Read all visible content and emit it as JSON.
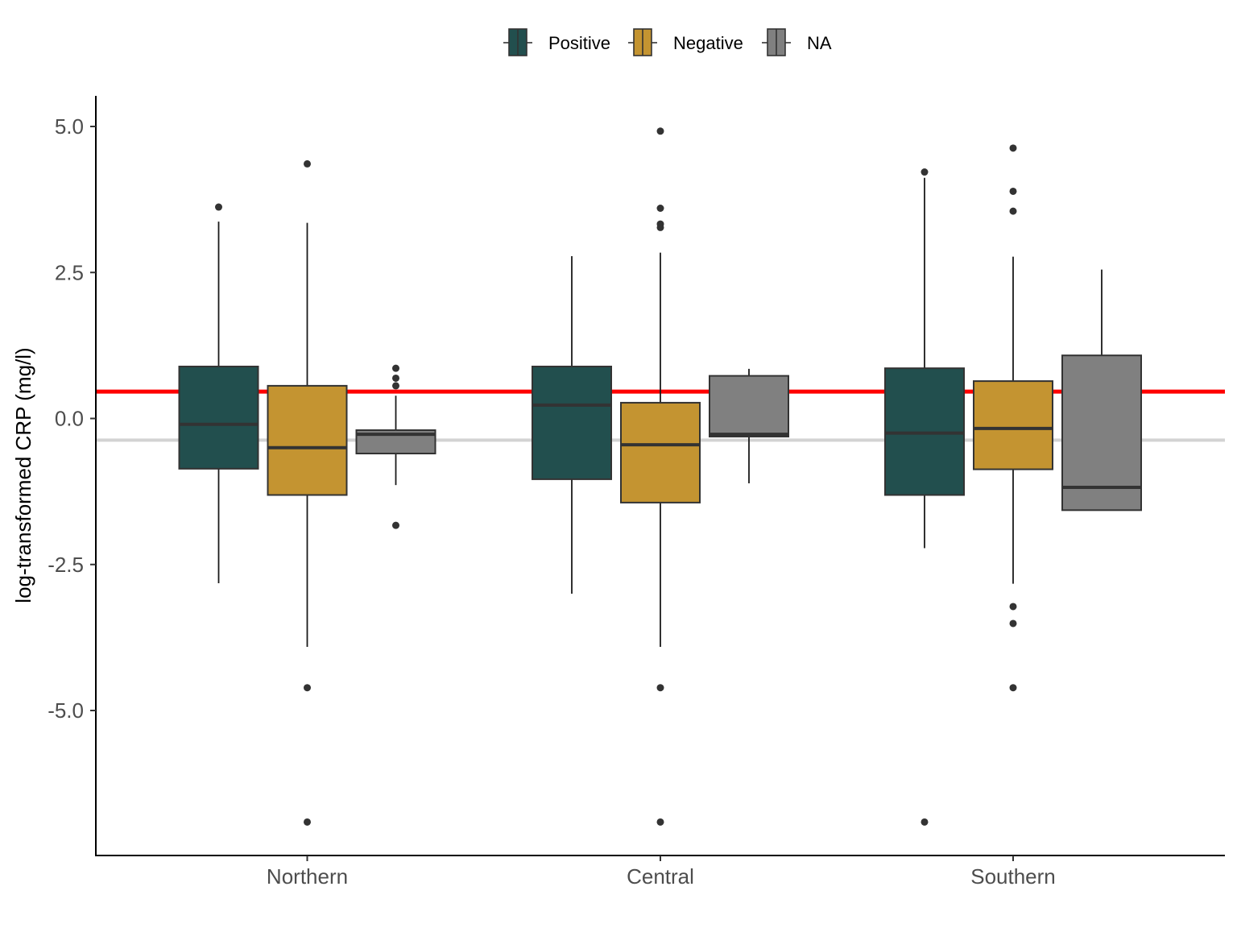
{
  "chart_data": {
    "type": "boxplot",
    "title": "",
    "xlabel": "",
    "ylabel": "log-transformed CRP (mg/l)",
    "ylim": [
      -7.5,
      5.5
    ],
    "yticks": [
      {
        "value": 5.0,
        "label": "5.0"
      },
      {
        "value": 2.5,
        "label": "2.5"
      },
      {
        "value": 0.0,
        "label": "0.0"
      },
      {
        "value": -2.5,
        "label": "-2.5"
      },
      {
        "value": -5.0,
        "label": "-5.0"
      }
    ],
    "categories": [
      "Northern",
      "Central",
      "Southern"
    ],
    "legend": {
      "position": "top",
      "entries": [
        {
          "name": "Positive",
          "color": "#224f4e"
        },
        {
          "name": "Negative",
          "color": "#c49431"
        },
        {
          "name": "NA",
          "color": "#808080"
        }
      ]
    },
    "reference_lines": [
      {
        "value": 0.46,
        "color": "#ff0000"
      },
      {
        "value": -0.37,
        "color": "#d3d3d3"
      }
    ],
    "series": [
      {
        "name": "Positive",
        "color": "#224f4e",
        "boxes": [
          {
            "category": "Northern",
            "lower_whisker": -2.82,
            "q1": -0.86,
            "median": -0.1,
            "q3": 0.89,
            "upper_whisker": 3.37,
            "outliers": [
              3.62
            ]
          },
          {
            "category": "Central",
            "lower_whisker": -3.0,
            "q1": -1.04,
            "median": 0.23,
            "q3": 0.89,
            "upper_whisker": 2.78,
            "outliers": []
          },
          {
            "category": "Southern",
            "lower_whisker": -2.22,
            "q1": -1.31,
            "median": -0.25,
            "q3": 0.86,
            "upper_whisker": 4.12,
            "outliers": [
              4.22,
              -6.91
            ]
          }
        ]
      },
      {
        "name": "Negative",
        "color": "#c49431",
        "boxes": [
          {
            "category": "Northern",
            "lower_whisker": -3.91,
            "q1": -1.31,
            "median": -0.5,
            "q3": 0.56,
            "upper_whisker": 3.35,
            "outliers": [
              4.36,
              -4.61,
              -6.91
            ]
          },
          {
            "category": "Central",
            "lower_whisker": -3.91,
            "q1": -1.44,
            "median": -0.45,
            "q3": 0.27,
            "upper_whisker": 2.84,
            "outliers": [
              4.92,
              3.6,
              3.33,
              3.27,
              -4.61,
              -6.91
            ]
          },
          {
            "category": "Southern",
            "lower_whisker": -2.83,
            "q1": -0.87,
            "median": -0.17,
            "q3": 0.64,
            "upper_whisker": 2.77,
            "outliers": [
              4.63,
              3.89,
              3.55,
              -3.22,
              -3.51,
              -4.61
            ]
          }
        ]
      },
      {
        "name": "NA",
        "color": "#808080",
        "boxes": [
          {
            "category": "Northern",
            "lower_whisker": -1.14,
            "q1": -0.6,
            "median": -0.27,
            "q3": -0.2,
            "upper_whisker": 0.39,
            "outliers": [
              0.86,
              0.69,
              0.56,
              -1.83
            ]
          },
          {
            "category": "Central",
            "lower_whisker": -1.11,
            "q1": -0.31,
            "median": -0.27,
            "q3": 0.73,
            "upper_whisker": 0.85,
            "outliers": []
          },
          {
            "category": "Southern",
            "lower_whisker": -1.57,
            "q1": -1.57,
            "median": -1.18,
            "q3": 1.08,
            "upper_whisker": 2.55,
            "outliers": []
          }
        ]
      }
    ]
  }
}
